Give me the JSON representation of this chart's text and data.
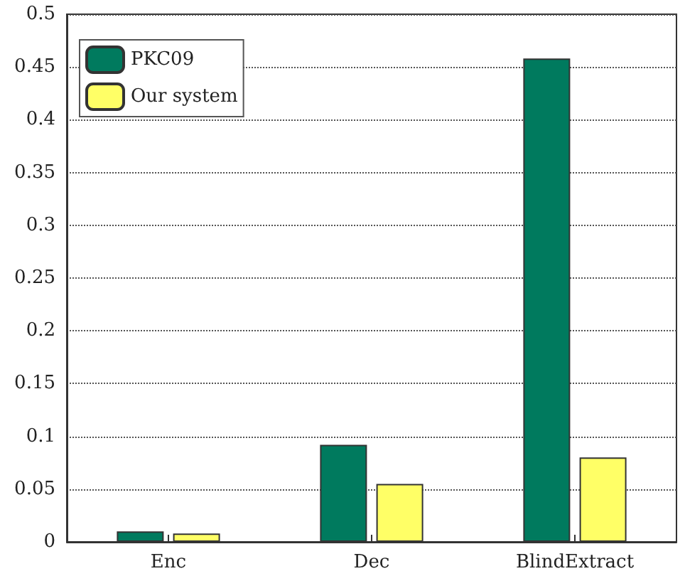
{
  "chart_data": {
    "type": "bar",
    "categories": [
      "Enc",
      "Dec",
      "BlindExtract"
    ],
    "series": [
      {
        "name": "PKC09",
        "color": "#007a5e",
        "values": [
          0.01,
          0.092,
          0.458
        ]
      },
      {
        "name": "Our system",
        "color": "#ffff66",
        "values": [
          0.008,
          0.055,
          0.08
        ]
      }
    ],
    "ylim": [
      0,
      0.5
    ],
    "yticks": [
      0,
      0.05,
      0.1,
      0.15,
      0.2,
      0.25,
      0.3,
      0.35,
      0.4,
      0.45,
      0.5
    ],
    "grid": "y",
    "legend": "top left"
  }
}
